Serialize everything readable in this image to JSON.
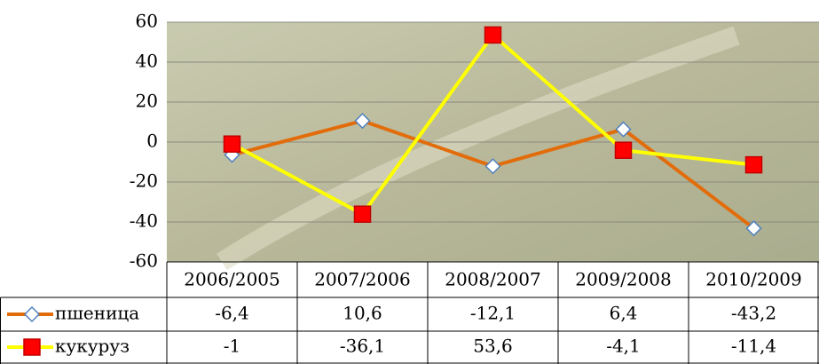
{
  "chart_data": {
    "type": "line",
    "categories": [
      "2006/2005",
      "2007/2006",
      "2008/2007",
      "2009/2008",
      "2010/2009"
    ],
    "series": [
      {
        "name": "пшеница",
        "color": "#E36C0A",
        "marker": "diamond",
        "marker_fill": "#FFFFFF",
        "marker_stroke": "#4F81BD",
        "values": [
          -6.4,
          10.6,
          -12.1,
          6.4,
          -43.2
        ],
        "value_labels": [
          "-6,4",
          "10,6",
          "-12,1",
          "6,4",
          "-43,2"
        ]
      },
      {
        "name": "кукуруз",
        "color": "#FFFF00",
        "marker": "square",
        "marker_fill": "#FF0000",
        "marker_stroke": "#C00000",
        "values": [
          -1,
          -36.1,
          53.6,
          -4.1,
          -11.4
        ],
        "value_labels": [
          "-1",
          "-36,1",
          "53,6",
          "-4,1",
          "-11,4"
        ]
      }
    ],
    "ylim": [
      -60,
      60
    ],
    "yticks": [
      -60,
      -40,
      -20,
      0,
      20,
      40,
      60
    ],
    "grid": true
  }
}
